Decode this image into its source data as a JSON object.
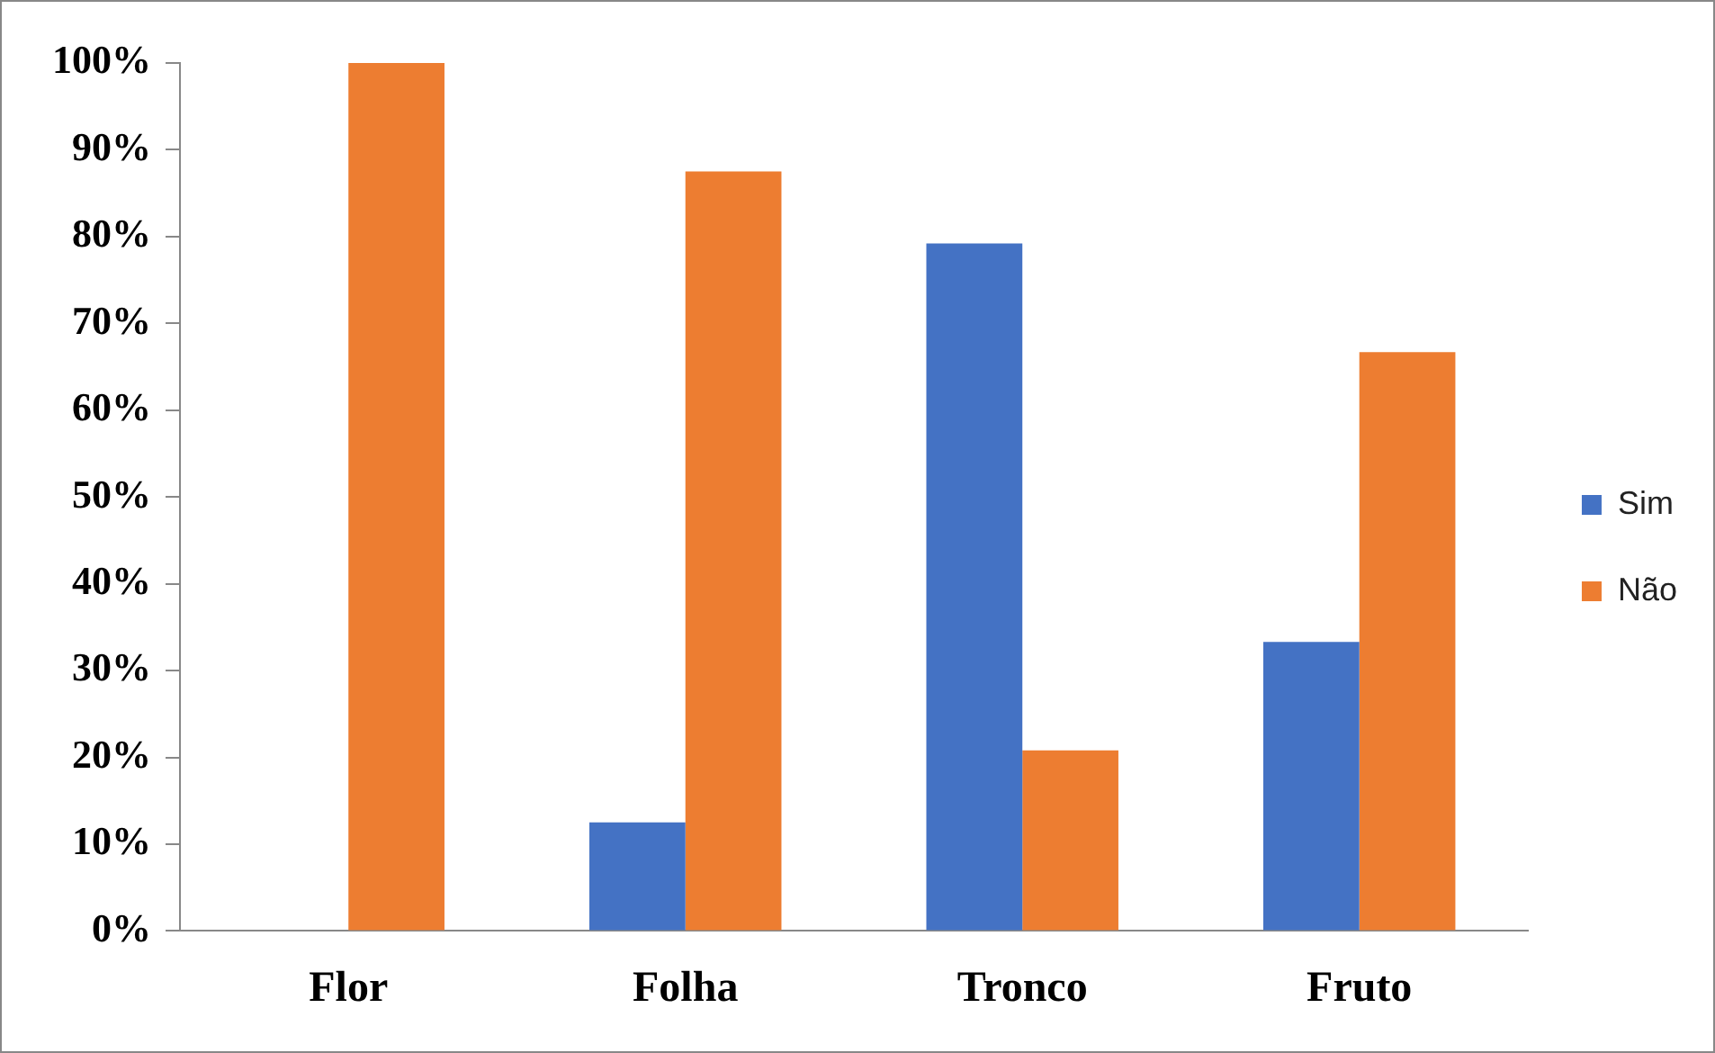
{
  "chart_data": {
    "type": "bar",
    "categories": [
      "Flor",
      "Folha",
      "Tronco",
      "Fruto"
    ],
    "series": [
      {
        "name": "Sim",
        "color": "#4472c4",
        "values": [
          0,
          12.5,
          79.2,
          33.3
        ]
      },
      {
        "name": "Não",
        "color": "#ed7d31",
        "values": [
          100,
          87.5,
          20.8,
          66.7
        ]
      }
    ],
    "ylim": [
      0,
      100
    ],
    "yticks": [
      {
        "value": 0,
        "label": "0%"
      },
      {
        "value": 10,
        "label": "10%"
      },
      {
        "value": 20,
        "label": "20%"
      },
      {
        "value": 30,
        "label": "30%"
      },
      {
        "value": 40,
        "label": "40%"
      },
      {
        "value": 50,
        "label": "50%"
      },
      {
        "value": 60,
        "label": "60%"
      },
      {
        "value": 70,
        "label": "70%"
      },
      {
        "value": 80,
        "label": "80%"
      },
      {
        "value": 90,
        "label": "90%"
      },
      {
        "value": 100,
        "label": "100%"
      }
    ],
    "grid": false,
    "legend": "right"
  }
}
